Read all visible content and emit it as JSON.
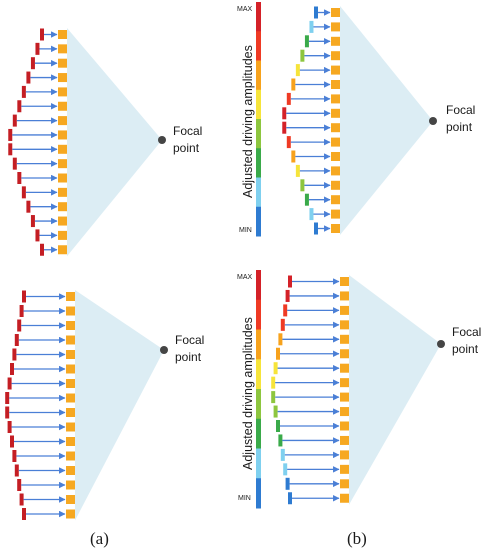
{
  "focal_text": {
    "line1": "Focal",
    "line2": "point"
  },
  "scale_max": "MAX",
  "scale_min": "MIN",
  "scale_title": "Adjusted driving amplitudes",
  "captions": {
    "a": "(a)",
    "b": "(b)"
  },
  "colors": {
    "cone": "#dcedf4",
    "element": "#f6a821",
    "arrow": "#4a7fd6",
    "dot": "#454545",
    "scale": [
      "#d42128",
      "#ef3a24",
      "#f7a21c",
      "#f6e43a",
      "#8dc63f",
      "#3aaa4a",
      "#7fd0ef",
      "#2e7bd1"
    ]
  },
  "panels": [
    {
      "id": "a-top",
      "column": "a",
      "elements": 16,
      "amplitude_coloring": false
    },
    {
      "id": "a-bottom",
      "column": "a",
      "elements": 16,
      "amplitude_coloring": false
    },
    {
      "id": "b-top",
      "column": "b",
      "elements": 16,
      "amplitude_coloring": true
    },
    {
      "id": "b-bottom",
      "column": "b",
      "elements": 16,
      "amplitude_coloring": true
    }
  ]
}
